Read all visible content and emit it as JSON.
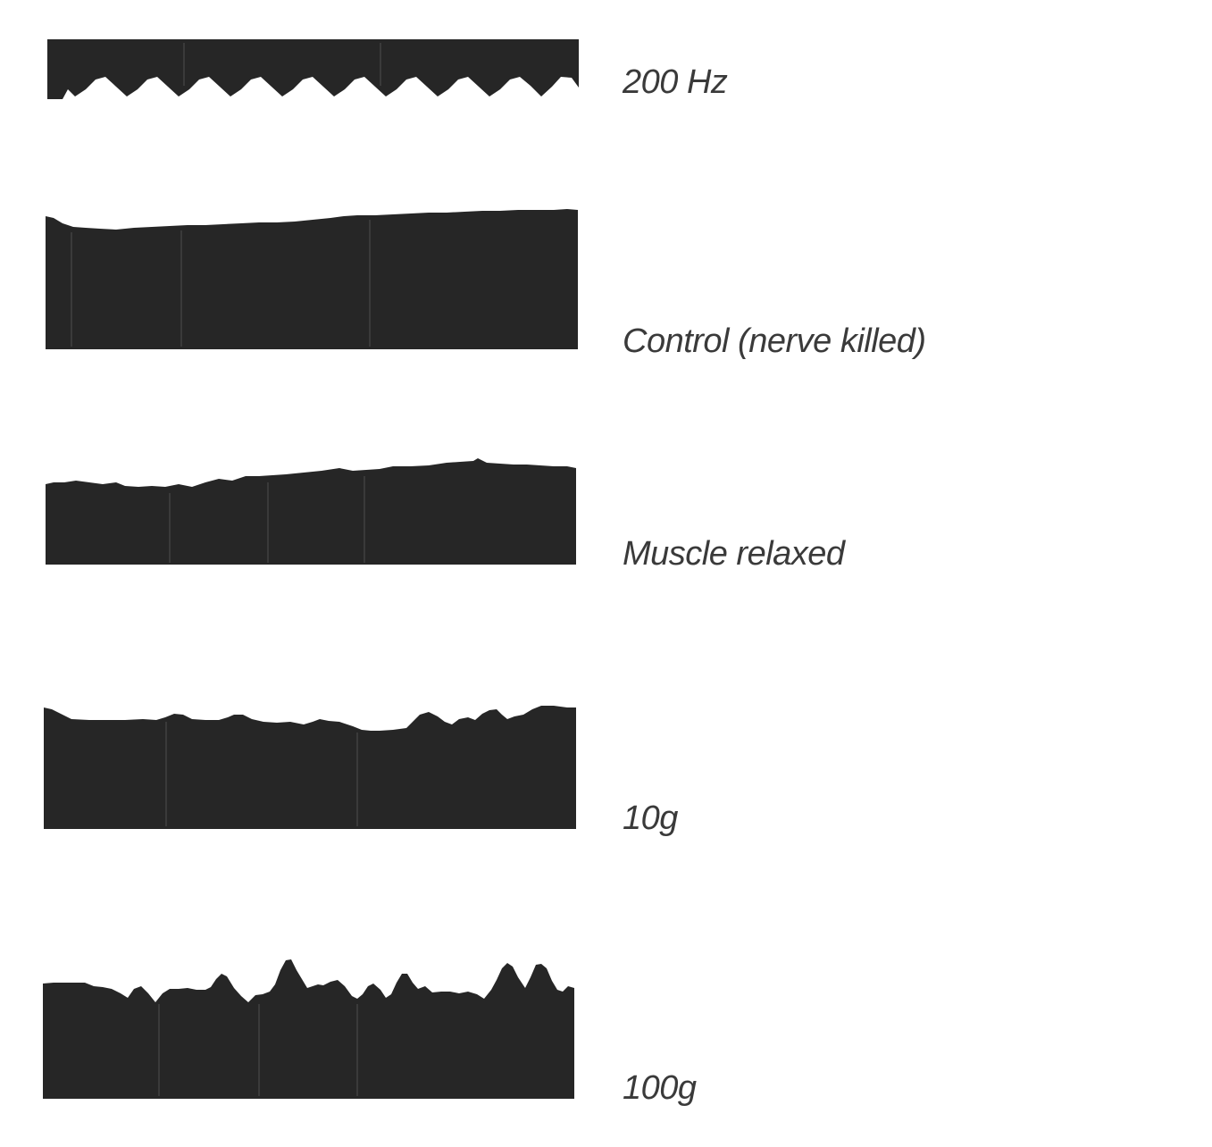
{
  "figure": {
    "ink_color": "#262626",
    "background_color": "#ffffff",
    "traces": [
      {
        "id": "calibration",
        "label": "200 Hz"
      },
      {
        "id": "control",
        "label": "Control (nerve killed)"
      },
      {
        "id": "relaxed",
        "label": "Muscle relaxed"
      },
      {
        "id": "load10",
        "label": "10g"
      },
      {
        "id": "load100",
        "label": "100g"
      }
    ]
  }
}
